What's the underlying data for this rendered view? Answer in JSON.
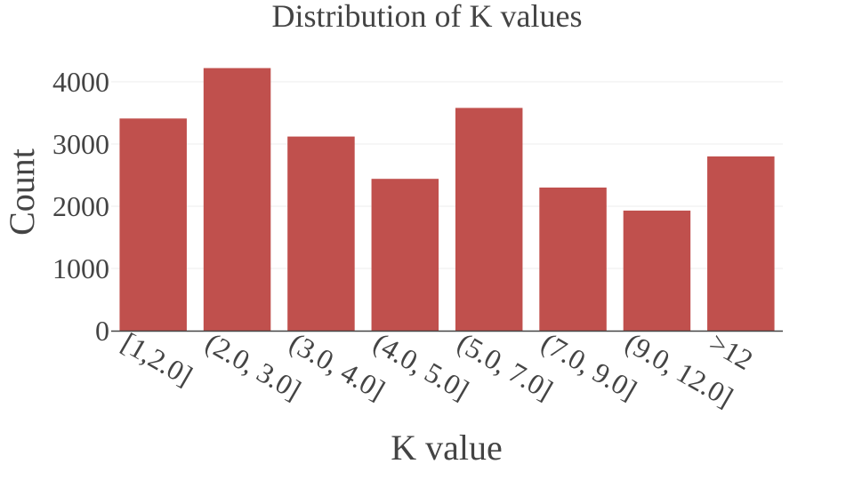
{
  "chart_data": {
    "type": "bar",
    "title": "Distribution of K values",
    "xlabel": "K value",
    "ylabel": "Count",
    "categories": [
      "[1,2.0]",
      "(2.0, 3.0]",
      "(3.0, 4.0]",
      "(4.0, 5.0]",
      "(5.0, 7.0]",
      "(7.0, 9.0]",
      "(9.0, 12.0]",
      ">12"
    ],
    "values": [
      3410,
      4220,
      3120,
      2440,
      3580,
      2300,
      1930,
      2800
    ],
    "ylim": [
      0,
      4500
    ],
    "yticks": [
      0,
      1000,
      2000,
      3000,
      4000
    ],
    "grid": true,
    "bar_color": "#c0504d"
  }
}
